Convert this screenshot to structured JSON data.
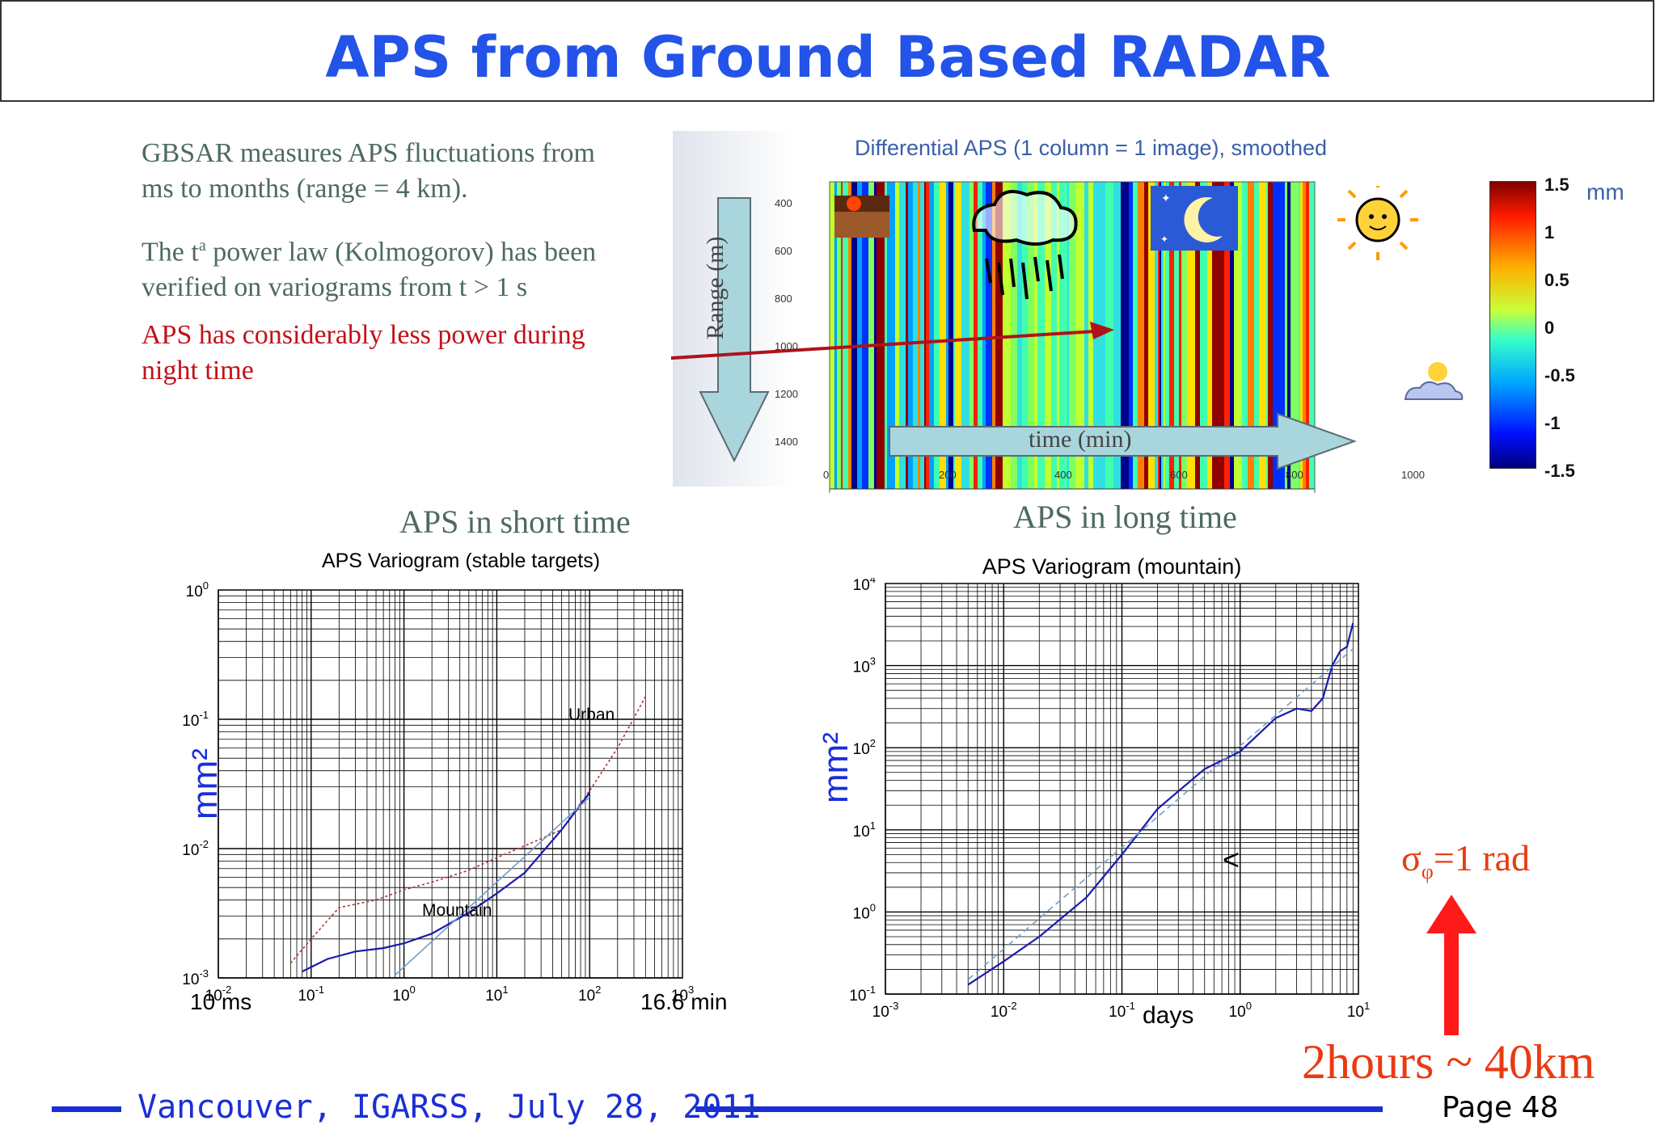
{
  "title": "APS from Ground Based RADAR",
  "bullets": {
    "b1_line1": "GBSAR measures APS fluctuations from",
    "b1_line2": "ms to months (range = 4 km).",
    "b2_pre": "The t",
    "b2_sup": "a",
    "b2_post": " power law (Kolmogorov) has been",
    "b2_line2": "verified on variograms from t > 1 s",
    "b3_line1": "APS has considerably less power  during",
    "b3_line2": "night time"
  },
  "aps_image": {
    "title": "Differential APS (1 column = 1 image), smoothed",
    "range_label": "Range (m)",
    "time_label": "time (min)",
    "y_ticks": [
      "400",
      "600",
      "800",
      "1000",
      "1200",
      "1400"
    ],
    "x_ticks": [
      "0",
      "200",
      "400",
      "600",
      "800",
      "1000"
    ],
    "colorbar_unit": "mm",
    "colorbar_ticks": [
      "1.5",
      "1",
      "0.5",
      "0",
      "-0.5",
      "-1",
      "-1.5"
    ],
    "colors": {
      "high": "#8b0000",
      "mid": "#7fff7f",
      "low": "#00008b"
    }
  },
  "captions": {
    "short": "APS in short time",
    "long": "APS in long time"
  },
  "chart_data": [
    {
      "type": "line",
      "title": "APS Variogram (stable targets)",
      "xlabel": "",
      "ylabel": "mm²",
      "x_scale": "log",
      "y_scale": "log",
      "xlim": [
        0.01,
        1000
      ],
      "ylim": [
        0.001,
        1
      ],
      "x_ticks": [
        "10-2",
        "10-1",
        "100",
        "101",
        "102",
        "103"
      ],
      "y_ticks": [
        "10-3",
        "10-2",
        "10-1",
        "100"
      ],
      "x_extra_labels": {
        "left": "10 ms",
        "right": "16.6 min"
      },
      "grid": true,
      "series": [
        {
          "name": "Urban",
          "color": "#b03030",
          "style": "dotted",
          "x": [
            0.06,
            0.1,
            0.2,
            0.5,
            1,
            2,
            5,
            10,
            20,
            50,
            100,
            200,
            400
          ],
          "y": [
            0.0013,
            0.002,
            0.0035,
            0.004,
            0.0048,
            0.0055,
            0.0068,
            0.0085,
            0.0105,
            0.014,
            0.028,
            0.06,
            0.15
          ]
        },
        {
          "name": "Mountain",
          "color": "#1a1ab0",
          "style": "solid",
          "x": [
            0.08,
            0.15,
            0.3,
            0.6,
            1,
            2,
            5,
            10,
            20,
            50,
            100
          ],
          "y": [
            0.00112,
            0.0014,
            0.0016,
            0.0017,
            0.00185,
            0.0022,
            0.0032,
            0.0045,
            0.0065,
            0.014,
            0.027
          ]
        },
        {
          "name": "",
          "color": "#6fa0c8",
          "style": "thin",
          "x": [
            0.8,
            100
          ],
          "y": [
            0.00105,
            0.025
          ]
        }
      ]
    },
    {
      "type": "line",
      "title": "APS Variogram (mountain)",
      "xlabel": "days",
      "ylabel": "mm²",
      "x_scale": "log",
      "y_scale": "log",
      "xlim": [
        0.001,
        10
      ],
      "ylim": [
        0.1,
        10000
      ],
      "x_ticks": [
        "10-3",
        "10-2",
        "10-1",
        "100",
        "101"
      ],
      "y_ticks": [
        "10-1",
        "100",
        "101",
        "102",
        "103",
        "104"
      ],
      "grid": true,
      "series": [
        {
          "name": "",
          "color": "#1a1ab0",
          "style": "solid",
          "x": [
            0.005,
            0.01,
            0.02,
            0.05,
            0.1,
            0.2,
            0.5,
            1,
            2,
            3,
            4,
            5,
            6,
            7,
            8,
            9
          ],
          "y": [
            0.13,
            0.25,
            0.5,
            1.5,
            5,
            18,
            55,
            90,
            230,
            300,
            280,
            400,
            1000,
            1500,
            1700,
            3300
          ]
        },
        {
          "name": "",
          "color": "#6fa0c8",
          "style": "dashed",
          "x": [
            0.005,
            9
          ],
          "y": [
            0.15,
            1600
          ]
        }
      ]
    }
  ],
  "annotations": {
    "urban": "Urban",
    "mountain": "Mountain",
    "lt_symbol": "<",
    "sigma": "σ",
    "sigma_sub": "φ",
    "sigma_rest": "=1 rad",
    "hours": "2hours ~ 40km"
  },
  "footer": {
    "text": "Vancouver, IGARSS, July 28, 2011",
    "page": "Page 48"
  }
}
